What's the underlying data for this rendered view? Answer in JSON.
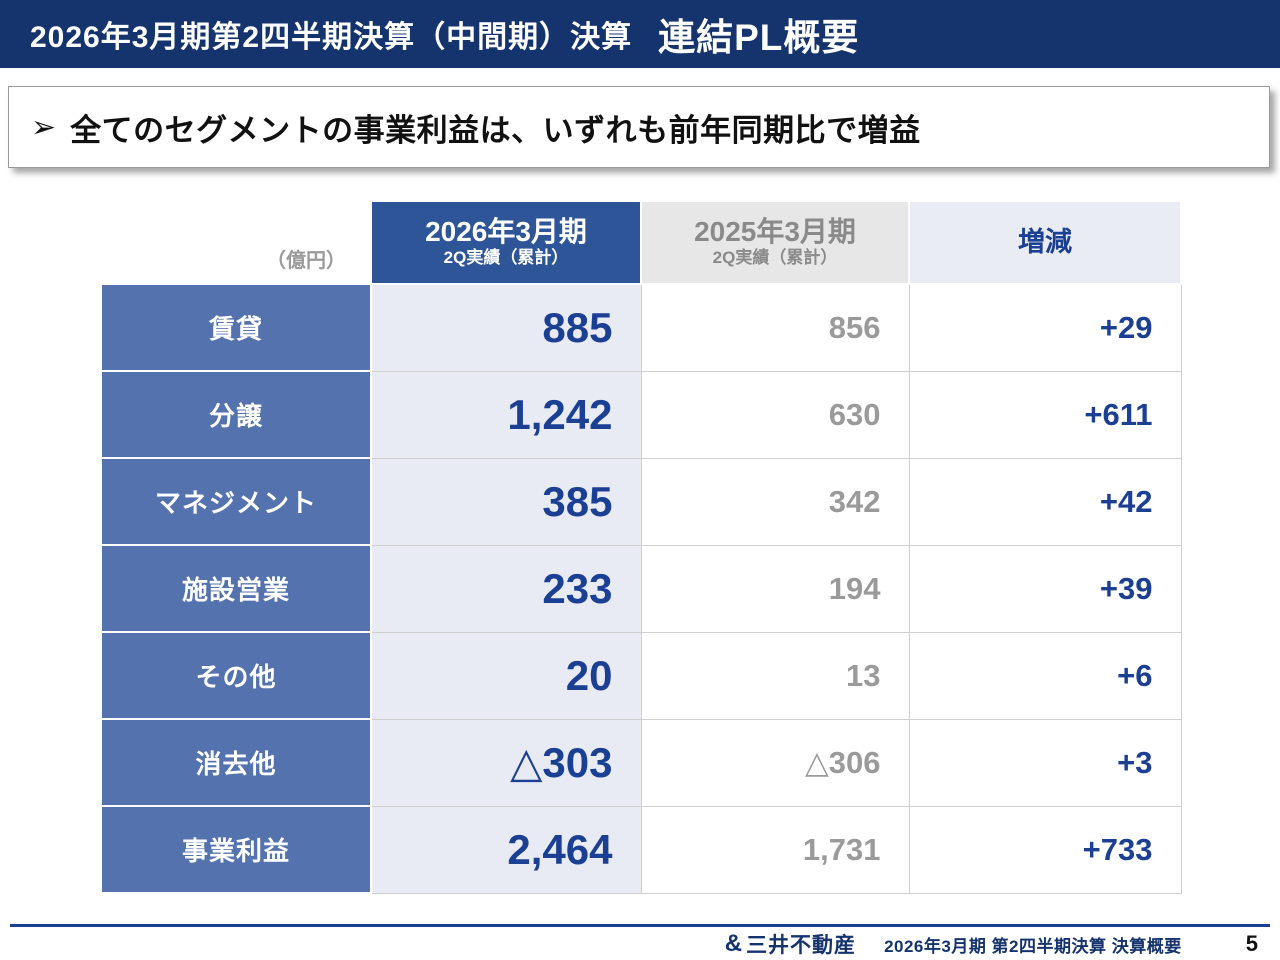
{
  "header": {
    "title_left": "2026年3月期第2四半期決算（中間期）決算",
    "title_right": "連結PL概要"
  },
  "message": {
    "bullet": "➢",
    "text": "全てのセグメントの事業利益は、いずれも前年同期比で増益"
  },
  "table": {
    "unit_label": "（億円）",
    "columns": [
      {
        "title": "2026年3月期",
        "subtitle": "2Q実績（累計）"
      },
      {
        "title": "2025年3月期",
        "subtitle": "2Q実績（累計）"
      },
      {
        "title": "増減",
        "subtitle": ""
      }
    ],
    "rows": [
      {
        "label": "賃貸",
        "fy2026": "885",
        "fy2025": "856",
        "change": "+29"
      },
      {
        "label": "分譲",
        "fy2026": "1,242",
        "fy2025": "630",
        "change": "+611"
      },
      {
        "label": "マネジメント",
        "fy2026": "385",
        "fy2025": "342",
        "change": "+42"
      },
      {
        "label": "施設営業",
        "fy2026": "233",
        "fy2025": "194",
        "change": "+39"
      },
      {
        "label": "その他",
        "fy2026": "20",
        "fy2025": "13",
        "change": "+6"
      },
      {
        "label": "消去他",
        "fy2026": "△303",
        "fy2025": "△306",
        "change": "+3"
      },
      {
        "label": "事業利益",
        "fy2026": "2,464",
        "fy2025": "1,731",
        "change": "+733"
      }
    ]
  },
  "footer": {
    "logo_mark": "&",
    "logo_text": "三井不動産",
    "caption": "2026年3月期 第2四半期決算 決算概要",
    "page_number": "5"
  },
  "colors": {
    "titlebar_bg": "#15346d",
    "accent_blue": "#1b3f93",
    "row_label_bg": "#5472ae",
    "col2026_header_bg": "#2e5597",
    "col2026_cell_bg": "#e9ebf4",
    "col2025_header_bg": "#e7e7e7",
    "change_header_bg": "#e9ecf3",
    "gray_text": "#9a9a9a"
  }
}
